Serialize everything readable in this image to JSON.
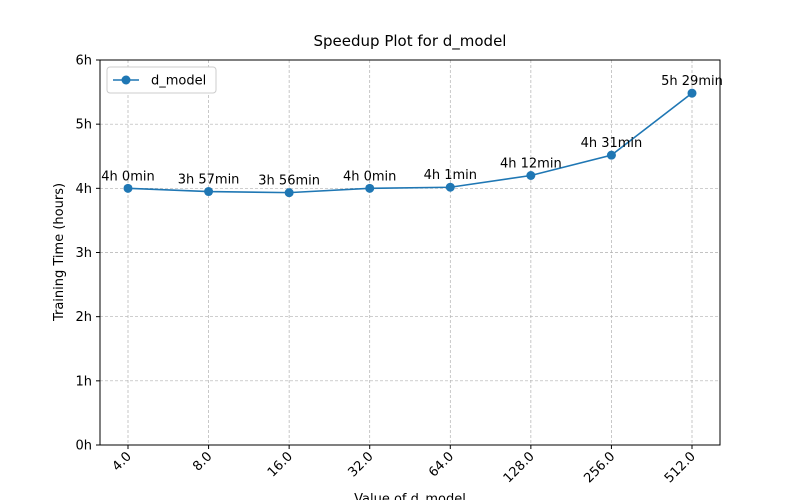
{
  "chart_data": {
    "type": "line",
    "title": "Speedup Plot for d_model",
    "x_label": "Value of d_model",
    "y_label": "Training Time (hours)",
    "categories": [
      "4.0",
      "8.0",
      "16.0",
      "32.0",
      "64.0",
      "128.0",
      "256.0",
      "512.0"
    ],
    "series": [
      {
        "name": "d_model",
        "color": "#1f77b4",
        "values": [
          4.0,
          3.95,
          3.933,
          4.0,
          4.017,
          4.2,
          4.517,
          5.483
        ],
        "value_labels": [
          "4h 0min",
          "3h 57min",
          "3h 56min",
          "4h 0min",
          "4h 1min",
          "4h 12min",
          "4h 31min",
          "5h 29min"
        ]
      }
    ],
    "ylim": [
      0,
      6
    ],
    "yticks": [
      {
        "value": 0,
        "label": "0h"
      },
      {
        "value": 1,
        "label": "1h"
      },
      {
        "value": 2,
        "label": "2h"
      },
      {
        "value": 3,
        "label": "3h"
      },
      {
        "value": 4,
        "label": "4h"
      },
      {
        "value": 5,
        "label": "5h"
      },
      {
        "value": 6,
        "label": "6h"
      }
    ],
    "grid": true,
    "legend": "upper left"
  }
}
